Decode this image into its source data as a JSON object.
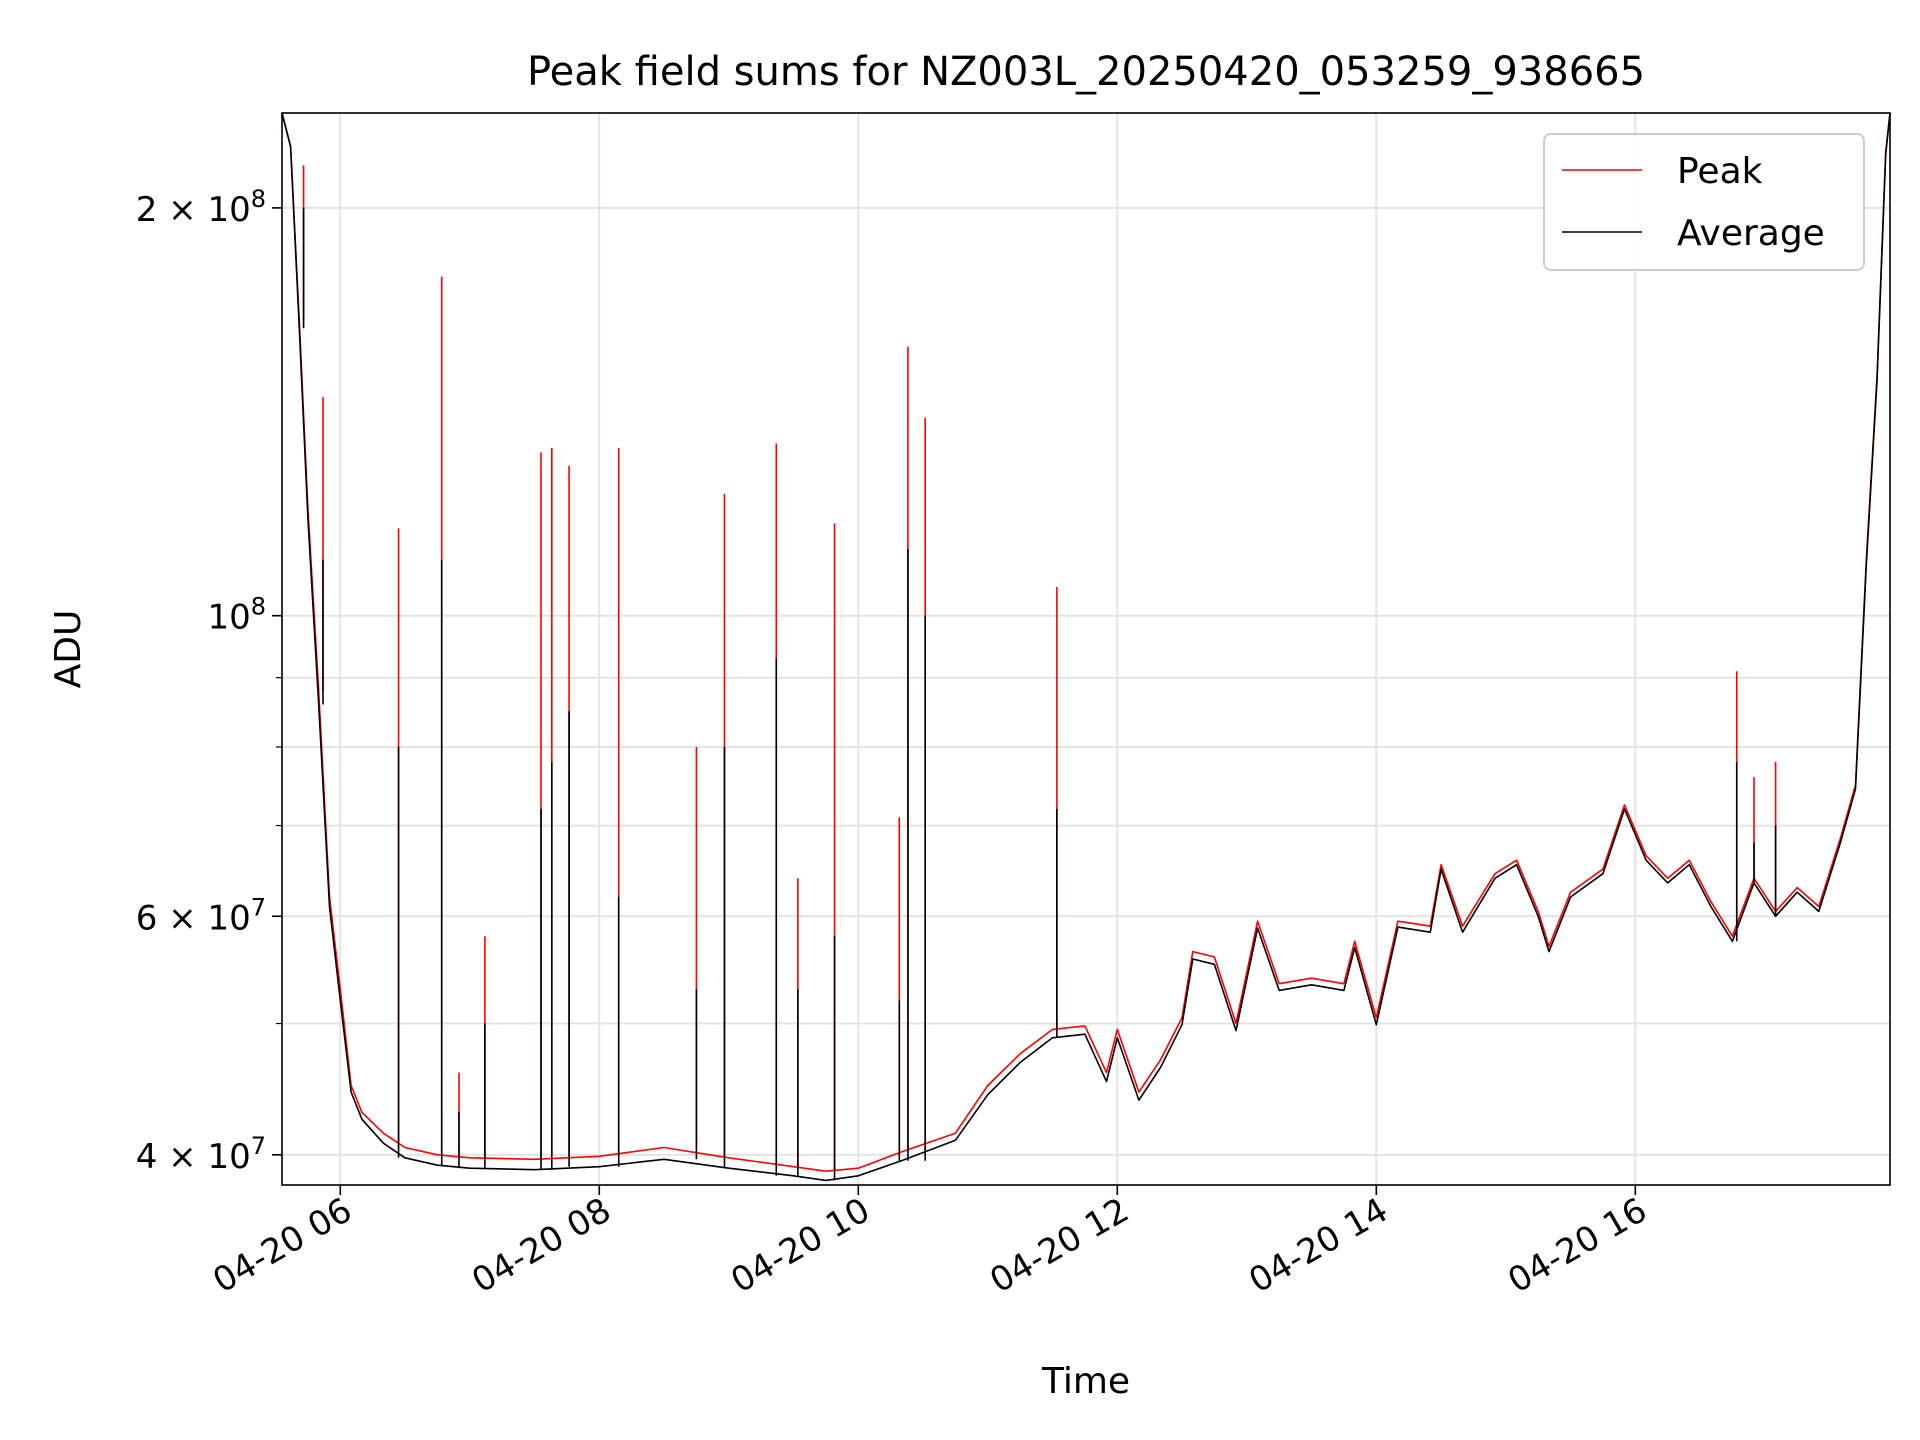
{
  "chart_data": {
    "type": "line",
    "title": "Peak field sums for NZ003L_20250420_053259_938665",
    "xlabel": "Time",
    "ylabel": "ADU",
    "y_scale": "log",
    "ylim": [
      38000000,
      235000000
    ],
    "xlim": [
      "2025-04-20 05:33",
      "2025-04-20 17:58"
    ],
    "x_ticks": [
      {
        "t": "2025-04-20 06:00",
        "label": "04-20 06"
      },
      {
        "t": "2025-04-20 08:00",
        "label": "04-20 08"
      },
      {
        "t": "2025-04-20 10:00",
        "label": "04-20 10"
      },
      {
        "t": "2025-04-20 12:00",
        "label": "04-20 12"
      },
      {
        "t": "2025-04-20 14:00",
        "label": "04-20 14"
      },
      {
        "t": "2025-04-20 16:00",
        "label": "04-20 16"
      }
    ],
    "y_ticks_major": [
      {
        "v": 40000000,
        "mant": "4",
        "exp": "7"
      },
      {
        "v": 60000000,
        "mant": "6",
        "exp": "7"
      },
      {
        "v": 100000000,
        "mant": "",
        "exp": "8"
      },
      {
        "v": 200000000,
        "mant": "2",
        "exp": "8"
      }
    ],
    "y_ticks_minor": [
      50000000,
      70000000,
      80000000,
      90000000
    ],
    "grid": true,
    "legend_position": "top-right",
    "series": [
      {
        "name": "Peak",
        "color": "#ff0000",
        "points": [
          [
            "2025-04-20 05:33",
            235000000
          ],
          [
            "2025-04-20 05:37",
            222000000
          ],
          [
            "2025-04-20 05:41",
            165000000
          ],
          [
            "2025-04-20 05:45",
            120000000
          ],
          [
            "2025-04-20 05:50",
            88000000
          ],
          [
            "2025-04-20 05:55",
            62000000
          ],
          [
            "2025-04-20 06:00",
            53000000
          ],
          [
            "2025-04-20 06:05",
            45000000
          ],
          [
            "2025-04-20 06:10",
            43000000
          ],
          [
            "2025-04-20 06:20",
            41500000
          ],
          [
            "2025-04-20 06:30",
            40500000
          ],
          [
            "2025-04-20 06:45",
            40000000
          ],
          [
            "2025-04-20 07:00",
            39800000
          ],
          [
            "2025-04-20 07:30",
            39700000
          ],
          [
            "2025-04-20 08:00",
            39900000
          ],
          [
            "2025-04-20 08:30",
            40500000
          ],
          [
            "2025-04-20 09:00",
            39800000
          ],
          [
            "2025-04-20 09:30",
            39200000
          ],
          [
            "2025-04-20 09:45",
            38900000
          ],
          [
            "2025-04-20 10:00",
            39100000
          ],
          [
            "2025-04-20 10:20",
            40200000
          ],
          [
            "2025-04-20 10:45",
            41500000
          ],
          [
            "2025-04-20 11:00",
            45000000
          ],
          [
            "2025-04-20 11:15",
            47500000
          ],
          [
            "2025-04-20 11:30",
            49500000
          ],
          [
            "2025-04-20 11:45",
            49800000
          ],
          [
            "2025-04-20 11:55",
            46000000
          ],
          [
            "2025-04-20 12:00",
            49500000
          ],
          [
            "2025-04-20 12:10",
            44500000
          ],
          [
            "2025-04-20 12:20",
            47000000
          ],
          [
            "2025-04-20 12:30",
            50500000
          ],
          [
            "2025-04-20 12:35",
            56500000
          ],
          [
            "2025-04-20 12:45",
            56000000
          ],
          [
            "2025-04-20 12:55",
            50000000
          ],
          [
            "2025-04-20 13:05",
            59500000
          ],
          [
            "2025-04-20 13:15",
            53500000
          ],
          [
            "2025-04-20 13:30",
            54000000
          ],
          [
            "2025-04-20 13:45",
            53500000
          ],
          [
            "2025-04-20 13:50",
            57500000
          ],
          [
            "2025-04-20 14:00",
            50500000
          ],
          [
            "2025-04-20 14:10",
            59500000
          ],
          [
            "2025-04-20 14:25",
            59000000
          ],
          [
            "2025-04-20 14:30",
            65500000
          ],
          [
            "2025-04-20 14:40",
            59000000
          ],
          [
            "2025-04-20 14:55",
            64500000
          ],
          [
            "2025-04-20 15:05",
            66000000
          ],
          [
            "2025-04-20 15:15",
            60500000
          ],
          [
            "2025-04-20 15:20",
            57000000
          ],
          [
            "2025-04-20 15:30",
            62500000
          ],
          [
            "2025-04-20 15:45",
            65000000
          ],
          [
            "2025-04-20 15:55",
            72500000
          ],
          [
            "2025-04-20 16:05",
            66500000
          ],
          [
            "2025-04-20 16:15",
            64000000
          ],
          [
            "2025-04-20 16:25",
            66000000
          ],
          [
            "2025-04-20 16:35",
            61500000
          ],
          [
            "2025-04-20 16:45",
            58000000
          ],
          [
            "2025-04-20 16:55",
            64000000
          ],
          [
            "2025-04-20 17:05",
            60500000
          ],
          [
            "2025-04-20 17:15",
            63000000
          ],
          [
            "2025-04-20 17:25",
            61000000
          ],
          [
            "2025-04-20 17:35",
            68500000
          ],
          [
            "2025-04-20 17:42",
            75000000
          ],
          [
            "2025-04-20 17:47",
            110000000
          ],
          [
            "2025-04-20 17:52",
            150000000
          ],
          [
            "2025-04-20 17:56",
            220000000
          ],
          [
            "2025-04-20 17:58",
            235000000
          ]
        ],
        "spikes": [
          [
            "2025-04-20 05:43",
            215000000
          ],
          [
            "2025-04-20 05:52",
            145000000
          ],
          [
            "2025-04-20 06:27",
            116000000
          ],
          [
            "2025-04-20 06:47",
            178000000
          ],
          [
            "2025-04-20 06:55",
            46000000
          ],
          [
            "2025-04-20 07:07",
            58000000
          ],
          [
            "2025-04-20 07:33",
            132000000
          ],
          [
            "2025-04-20 07:38",
            133000000
          ],
          [
            "2025-04-20 07:46",
            129000000
          ],
          [
            "2025-04-20 08:09",
            133000000
          ],
          [
            "2025-04-20 08:45",
            80000000
          ],
          [
            "2025-04-20 08:58",
            123000000
          ],
          [
            "2025-04-20 09:22",
            134000000
          ],
          [
            "2025-04-20 09:32",
            64000000
          ],
          [
            "2025-04-20 09:49",
            117000000
          ],
          [
            "2025-04-20 10:19",
            71000000
          ],
          [
            "2025-04-20 10:23",
            158000000
          ],
          [
            "2025-04-20 10:31",
            140000000
          ],
          [
            "2025-04-20 11:32",
            105000000
          ],
          [
            "2025-04-20 16:47",
            91000000
          ],
          [
            "2025-04-20 16:55",
            76000000
          ],
          [
            "2025-04-20 17:05",
            78000000
          ]
        ]
      },
      {
        "name": "Average",
        "color": "#000000",
        "points": [
          [
            "2025-04-20 05:33",
            235000000
          ],
          [
            "2025-04-20 05:37",
            222000000
          ],
          [
            "2025-04-20 05:41",
            163000000
          ],
          [
            "2025-04-20 05:45",
            118000000
          ],
          [
            "2025-04-20 05:50",
            86000000
          ],
          [
            "2025-04-20 05:55",
            61000000
          ],
          [
            "2025-04-20 06:00",
            52000000
          ],
          [
            "2025-04-20 06:05",
            44500000
          ],
          [
            "2025-04-20 06:10",
            42500000
          ],
          [
            "2025-04-20 06:20",
            40800000
          ],
          [
            "2025-04-20 06:30",
            39800000
          ],
          [
            "2025-04-20 06:45",
            39300000
          ],
          [
            "2025-04-20 07:00",
            39100000
          ],
          [
            "2025-04-20 07:30",
            39000000
          ],
          [
            "2025-04-20 08:00",
            39200000
          ],
          [
            "2025-04-20 08:30",
            39700000
          ],
          [
            "2025-04-20 09:00",
            39100000
          ],
          [
            "2025-04-20 09:30",
            38600000
          ],
          [
            "2025-04-20 09:45",
            38300000
          ],
          [
            "2025-04-20 10:00",
            38600000
          ],
          [
            "2025-04-20 10:20",
            39600000
          ],
          [
            "2025-04-20 10:45",
            41000000
          ],
          [
            "2025-04-20 11:00",
            44300000
          ],
          [
            "2025-04-20 11:15",
            46800000
          ],
          [
            "2025-04-20 11:30",
            48800000
          ],
          [
            "2025-04-20 11:45",
            49100000
          ],
          [
            "2025-04-20 11:55",
            45300000
          ],
          [
            "2025-04-20 12:00",
            48800000
          ],
          [
            "2025-04-20 12:10",
            43900000
          ],
          [
            "2025-04-20 12:20",
            46400000
          ],
          [
            "2025-04-20 12:30",
            49900000
          ],
          [
            "2025-04-20 12:35",
            55800000
          ],
          [
            "2025-04-20 12:45",
            55300000
          ],
          [
            "2025-04-20 12:55",
            49400000
          ],
          [
            "2025-04-20 13:05",
            58800000
          ],
          [
            "2025-04-20 13:15",
            52900000
          ],
          [
            "2025-04-20 13:30",
            53400000
          ],
          [
            "2025-04-20 13:45",
            52900000
          ],
          [
            "2025-04-20 13:50",
            56900000
          ],
          [
            "2025-04-20 14:00",
            49900000
          ],
          [
            "2025-04-20 14:10",
            58900000
          ],
          [
            "2025-04-20 14:25",
            58400000
          ],
          [
            "2025-04-20 14:30",
            65000000
          ],
          [
            "2025-04-20 14:40",
            58400000
          ],
          [
            "2025-04-20 14:55",
            64000000
          ],
          [
            "2025-04-20 15:05",
            65500000
          ],
          [
            "2025-04-20 15:15",
            60000000
          ],
          [
            "2025-04-20 15:20",
            56500000
          ],
          [
            "2025-04-20 15:30",
            62000000
          ],
          [
            "2025-04-20 15:45",
            64500000
          ],
          [
            "2025-04-20 15:55",
            72000000
          ],
          [
            "2025-04-20 16:05",
            66000000
          ],
          [
            "2025-04-20 16:15",
            63500000
          ],
          [
            "2025-04-20 16:25",
            65500000
          ],
          [
            "2025-04-20 16:35",
            61000000
          ],
          [
            "2025-04-20 16:45",
            57500000
          ],
          [
            "2025-04-20 16:55",
            63500000
          ],
          [
            "2025-04-20 17:05",
            60000000
          ],
          [
            "2025-04-20 17:15",
            62500000
          ],
          [
            "2025-04-20 17:25",
            60500000
          ],
          [
            "2025-04-20 17:35",
            68000000
          ],
          [
            "2025-04-20 17:42",
            74500000
          ],
          [
            "2025-04-20 17:47",
            109000000
          ],
          [
            "2025-04-20 17:52",
            149000000
          ],
          [
            "2025-04-20 17:56",
            219000000
          ],
          [
            "2025-04-20 17:58",
            235000000
          ]
        ],
        "spikes": [
          [
            "2025-04-20 05:43",
            200000000
          ],
          [
            "2025-04-20 05:52",
            110000000
          ],
          [
            "2025-04-20 06:27",
            80000000
          ],
          [
            "2025-04-20 06:47",
            110000000
          ],
          [
            "2025-04-20 06:55",
            43000000
          ],
          [
            "2025-04-20 07:07",
            50000000
          ],
          [
            "2025-04-20 07:33",
            72000000
          ],
          [
            "2025-04-20 07:38",
            78000000
          ],
          [
            "2025-04-20 07:46",
            85000000
          ],
          [
            "2025-04-20 08:09",
            62000000
          ],
          [
            "2025-04-20 08:45",
            53000000
          ],
          [
            "2025-04-20 08:58",
            80000000
          ],
          [
            "2025-04-20 09:22",
            93000000
          ],
          [
            "2025-04-20 09:32",
            53000000
          ],
          [
            "2025-04-20 09:49",
            58000000
          ],
          [
            "2025-04-20 10:19",
            52000000
          ],
          [
            "2025-04-20 10:23",
            112000000
          ],
          [
            "2025-04-20 10:31",
            100000000
          ],
          [
            "2025-04-20 11:32",
            72000000
          ],
          [
            "2025-04-20 16:47",
            78000000
          ],
          [
            "2025-04-20 16:55",
            68000000
          ],
          [
            "2025-04-20 17:05",
            70000000
          ]
        ]
      }
    ]
  }
}
